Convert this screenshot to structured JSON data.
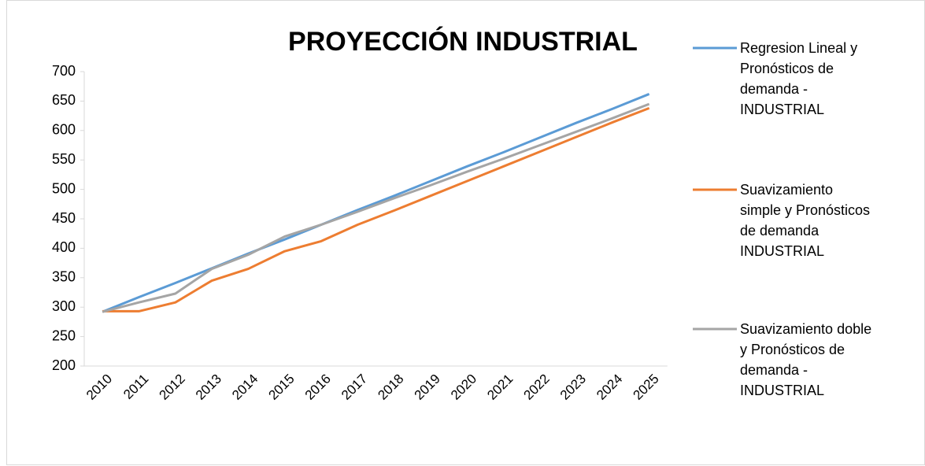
{
  "chart_data": {
    "type": "line",
    "title": "PROYECCIÓN INDUSTRIAL",
    "categories": [
      "2010",
      "2011",
      "2012",
      "2013",
      "2014",
      "2015",
      "2016",
      "2017",
      "2018",
      "2019",
      "2020",
      "2021",
      "2022",
      "2023",
      "2024",
      "2025"
    ],
    "series": [
      {
        "name": "Regresion Lineal y Pronósticos de demanda - INDUSTRIAL",
        "color": "#5b9bd5",
        "values": [
          292,
          317,
          341,
          366,
          391,
          415,
          440,
          465,
          489,
          514,
          539,
          563,
          588,
          613,
          637,
          662
        ]
      },
      {
        "name": "Suavizamiento simple y Pronósticos de demanda INDUSTRIAL",
        "color": "#ed7d31",
        "values": [
          293,
          293,
          308,
          345,
          365,
          395,
          412,
          440,
          464,
          489,
          514,
          539,
          564,
          589,
          614,
          638
        ]
      },
      {
        "name": "Suavizamiento doble y Pronósticos de demanda - INDUSTRIAL",
        "color": "#a5a5a5",
        "values": [
          292,
          308,
          323,
          365,
          389,
          420,
          440,
          462,
          485,
          507,
          530,
          552,
          575,
          598,
          621,
          645
        ]
      }
    ],
    "ylim": [
      200,
      700
    ],
    "yticks": [
      200,
      250,
      300,
      350,
      400,
      450,
      500,
      550,
      600,
      650,
      700
    ],
    "legend": "right"
  }
}
